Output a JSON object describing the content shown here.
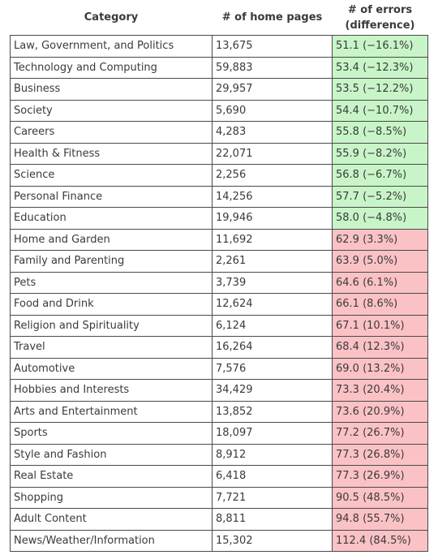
{
  "table": {
    "headers": {
      "category": "Category",
      "home_pages": "# of home pages",
      "errors_line1": "# of errors",
      "errors_line2": "(difference)"
    },
    "rows": [
      {
        "category": "Law, Government, and Politics",
        "home_pages": "13,675",
        "errors": "51.1 (−16.1%)",
        "status": "below"
      },
      {
        "category": "Technology and Computing",
        "home_pages": "59,883",
        "errors": "53.4 (−12.3%)",
        "status": "below"
      },
      {
        "category": "Business",
        "home_pages": "29,957",
        "errors": "53.5 (−12.2%)",
        "status": "below"
      },
      {
        "category": "Society",
        "home_pages": "5,690",
        "errors": "54.4 (−10.7%)",
        "status": "below"
      },
      {
        "category": "Careers",
        "home_pages": "4,283",
        "errors": "55.8 (−8.5%)",
        "status": "below"
      },
      {
        "category": "Health & Fitness",
        "home_pages": "22,071",
        "errors": "55.9 (−8.2%)",
        "status": "below"
      },
      {
        "category": "Science",
        "home_pages": "2,256",
        "errors": "56.8 (−6.7%)",
        "status": "below"
      },
      {
        "category": "Personal Finance",
        "home_pages": "14,256",
        "errors": "57.7 (−5.2%)",
        "status": "below"
      },
      {
        "category": "Education",
        "home_pages": "19,946",
        "errors": "58.0 (−4.8%)",
        "status": "below"
      },
      {
        "category": "Home and Garden",
        "home_pages": "11,692",
        "errors": "62.9 (3.3%)",
        "status": "above"
      },
      {
        "category": "Family and Parenting",
        "home_pages": "2,261",
        "errors": "63.9 (5.0%)",
        "status": "above"
      },
      {
        "category": "Pets",
        "home_pages": "3,739",
        "errors": "64.6 (6.1%)",
        "status": "above"
      },
      {
        "category": "Food and Drink",
        "home_pages": "12,624",
        "errors": "66.1 (8.6%)",
        "status": "above"
      },
      {
        "category": "Religion and Spirituality",
        "home_pages": "6,124",
        "errors": "67.1 (10.1%)",
        "status": "above"
      },
      {
        "category": "Travel",
        "home_pages": "16,264",
        "errors": "68.4 (12.3%)",
        "status": "above"
      },
      {
        "category": "Automotive",
        "home_pages": "7,576",
        "errors": "69.0 (13.2%)",
        "status": "above"
      },
      {
        "category": "Hobbies and Interests",
        "home_pages": "34,429",
        "errors": "73.3 (20.4%)",
        "status": "above"
      },
      {
        "category": "Arts and Entertainment",
        "home_pages": "13,852",
        "errors": "73.6 (20.9%)",
        "status": "above"
      },
      {
        "category": "Sports",
        "home_pages": "18,097",
        "errors": "77.2 (26.7%)",
        "status": "above"
      },
      {
        "category": "Style and Fashion",
        "home_pages": "8,912",
        "errors": "77.3 (26.8%)",
        "status": "above"
      },
      {
        "category": "Real Estate",
        "home_pages": "6,418",
        "errors": "77.3 (26.9%)",
        "status": "above"
      },
      {
        "category": "Shopping",
        "home_pages": "7,721",
        "errors": "90.5 (48.5%)",
        "status": "above"
      },
      {
        "category": "Adult Content",
        "home_pages": "8,811",
        "errors": "94.8 (55.7%)",
        "status": "above"
      },
      {
        "category": "News/Weather/Information",
        "home_pages": "15,302",
        "errors": "112.4 (84.5%)",
        "status": "above"
      }
    ]
  },
  "colors": {
    "below_average": "#c8f5c8",
    "above_average": "#fbc2c6",
    "border": "#4a4a4a",
    "text": "#3a3a3a"
  }
}
